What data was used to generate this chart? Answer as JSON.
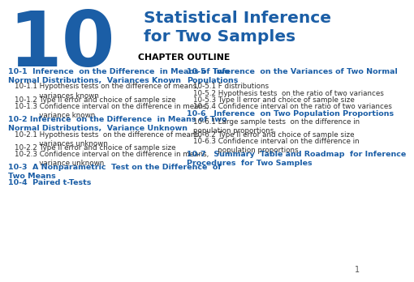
{
  "bg_color": "#ffffff",
  "big_number": "10",
  "big_number_color": "#1B5EA6",
  "title_line1": "Statistical Inference",
  "title_line2": "for Two Samples",
  "title_color": "#1B5EA6",
  "chapter_outline": "CHAPTER OUTLINE",
  "page_number": "1",
  "left_col_items": [
    {
      "text": "10-1  Inference  on the Difference  in Means of Two\nNormal Distributions,  Variances Known",
      "indent": 0,
      "bold": true,
      "size": 6.8
    },
    {
      "text": "10-1.1 Hypothesis tests on the difference of means,\n           variances known",
      "indent": 1,
      "bold": false,
      "size": 6.3
    },
    {
      "text": "10-1.2 Type II error and choice of sample size",
      "indent": 1,
      "bold": false,
      "size": 6.3
    },
    {
      "text": "10-1.3 Confidence interval on the difference in means,\n           variance known",
      "indent": 1,
      "bold": false,
      "size": 6.3
    },
    {
      "text": "10-2 Inference  on the Difference  in Means of Two\nNormal Distributions,  Variance Unknown",
      "indent": 0,
      "bold": true,
      "size": 6.8
    },
    {
      "text": "10-2.1 Hypothesis tests  on the difference of means,\n           variances unknown",
      "indent": 1,
      "bold": false,
      "size": 6.3
    },
    {
      "text": "10-2.2 Type II error and choice of sample size",
      "indent": 1,
      "bold": false,
      "size": 6.3
    },
    {
      "text": "10-2.3 Confidence interval on the difference in means,\n           variance unknown",
      "indent": 1,
      "bold": false,
      "size": 6.3
    },
    {
      "text": "10-3  A Nonparametric  Test on the Difference  of\nTwo Means",
      "indent": 0,
      "bold": true,
      "size": 6.8
    },
    {
      "text": "10-4  Paired t-Tests",
      "indent": 0,
      "bold": true,
      "size": 6.8
    }
  ],
  "right_col_items": [
    {
      "text": "10-5   Inference  on the Variances of Two Normal\nPopulations",
      "indent": 0,
      "bold": true,
      "size": 6.8
    },
    {
      "text": "10-5.1 F distributions",
      "indent": 1,
      "bold": false,
      "size": 6.3
    },
    {
      "text": "10-5.2 Hypothesis tests  on the ratio of two variances",
      "indent": 1,
      "bold": false,
      "size": 6.3
    },
    {
      "text": "10-5.3 Type II error and choice of sample size",
      "indent": 1,
      "bold": false,
      "size": 6.3
    },
    {
      "text": "10-5.4 Confidence interval on the ratio of two variances",
      "indent": 1,
      "bold": false,
      "size": 6.3
    },
    {
      "text": "10-6   Inference  on Two Population Proportions",
      "indent": 0,
      "bold": true,
      "size": 6.8
    },
    {
      "text": "10-6.1 Large sample tests  on the difference in\npopulation proportions",
      "indent": 1,
      "bold": false,
      "size": 6.3
    },
    {
      "text": "10-6.2 Type II error and choice of sample size",
      "indent": 1,
      "bold": false,
      "size": 6.3
    },
    {
      "text": "10-6.3 Confidence interval on the difference in\n           population proportions",
      "indent": 1,
      "bold": false,
      "size": 6.3
    },
    {
      "text": "10-7   Summary  Table and Roadmap  for Inference\nProcedures  for Two Samples",
      "indent": 0,
      "bold": true,
      "size": 6.8
    }
  ]
}
